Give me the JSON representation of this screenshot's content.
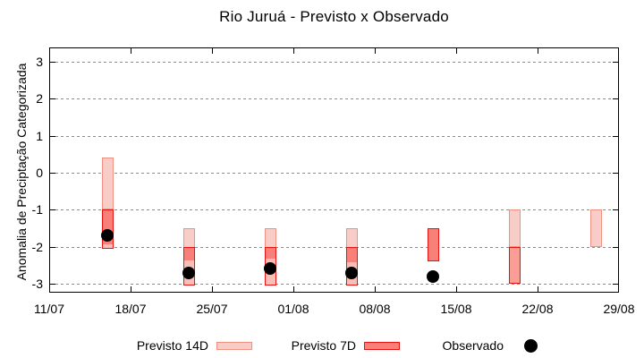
{
  "chart_data": {
    "type": "bar",
    "title": "Rio Juruá - Previsto x Observado",
    "ylabel": "Anomalia de Preciptação Categorizada",
    "xlabel": "",
    "ylim": [
      -3.4,
      3.4
    ],
    "grid": true,
    "legend_position": "bottom",
    "y_ticks": [
      3,
      2,
      1,
      0,
      -1,
      -2,
      -3
    ],
    "x_ticks": [
      {
        "label": "11/07",
        "day": 0
      },
      {
        "label": "18/07",
        "day": 7
      },
      {
        "label": "25/07",
        "day": 14
      },
      {
        "label": "01/08",
        "day": 21
      },
      {
        "label": "08/08",
        "day": 28
      },
      {
        "label": "15/08",
        "day": 35
      },
      {
        "label": "22/08",
        "day": 42
      },
      {
        "label": "29/08",
        "day": 49
      }
    ],
    "series": [
      {
        "name": "Previsto 14D",
        "type": "range-bar",
        "points": [
          {
            "date": "16/07",
            "day": 5,
            "hi": 0.4,
            "lo": -1.0
          },
          {
            "date": "23/07",
            "day": 12,
            "hi": -1.5,
            "lo": -3.0
          },
          {
            "date": "30/07",
            "day": 19,
            "hi": -1.5,
            "lo": -3.0
          },
          {
            "date": "06/08",
            "day": 26,
            "hi": -1.5,
            "lo": -3.0
          },
          {
            "date": "20/08",
            "day": 40,
            "hi": -1.0,
            "lo": -2.0
          },
          {
            "date": "27/08",
            "day": 47,
            "hi": -1.0,
            "lo": -2.0
          }
        ]
      },
      {
        "name": "Previsto 7D",
        "type": "range-bar",
        "points": [
          {
            "date": "16/07",
            "day": 5,
            "hi": -1.0,
            "lo": -2.05,
            "fill_to": -1.95
          },
          {
            "date": "23/07",
            "day": 12,
            "hi": -2.0,
            "lo": -3.05,
            "fill_to": -2.4
          },
          {
            "date": "30/07",
            "day": 19,
            "hi": -2.0,
            "lo": -3.05,
            "fill_to": -2.35
          },
          {
            "date": "06/08",
            "day": 26,
            "hi": -2.0,
            "lo": -3.05,
            "fill_to": -2.45
          },
          {
            "date": "13/08",
            "day": 33,
            "hi": -1.5,
            "lo": -2.4,
            "fill_to": -2.4
          },
          {
            "date": "20/08",
            "day": 40,
            "hi": -2.0,
            "lo": -3.0,
            "fill_to": -3.0,
            "tone": "mid"
          }
        ]
      },
      {
        "name": "Observado",
        "type": "scatter",
        "points": [
          {
            "date": "16/07",
            "day": 5,
            "value": -1.7
          },
          {
            "date": "23/07",
            "day": 12,
            "value": -2.7
          },
          {
            "date": "30/07",
            "day": 19,
            "value": -2.6
          },
          {
            "date": "06/08",
            "day": 26,
            "value": -2.7
          },
          {
            "date": "13/08",
            "day": 33,
            "value": -2.8
          }
        ]
      }
    ],
    "colors": {
      "light_fill": "#f9cdc7",
      "light_border": "#f09080",
      "dark_fill": "#f88078",
      "dark_border": "#e61410",
      "soft_fill": "#f9beb8",
      "mid_fill": "#fa9d96",
      "grid": "#8c8c8c",
      "frame": "#000000",
      "dot": "#000000",
      "text": "#000000"
    }
  }
}
